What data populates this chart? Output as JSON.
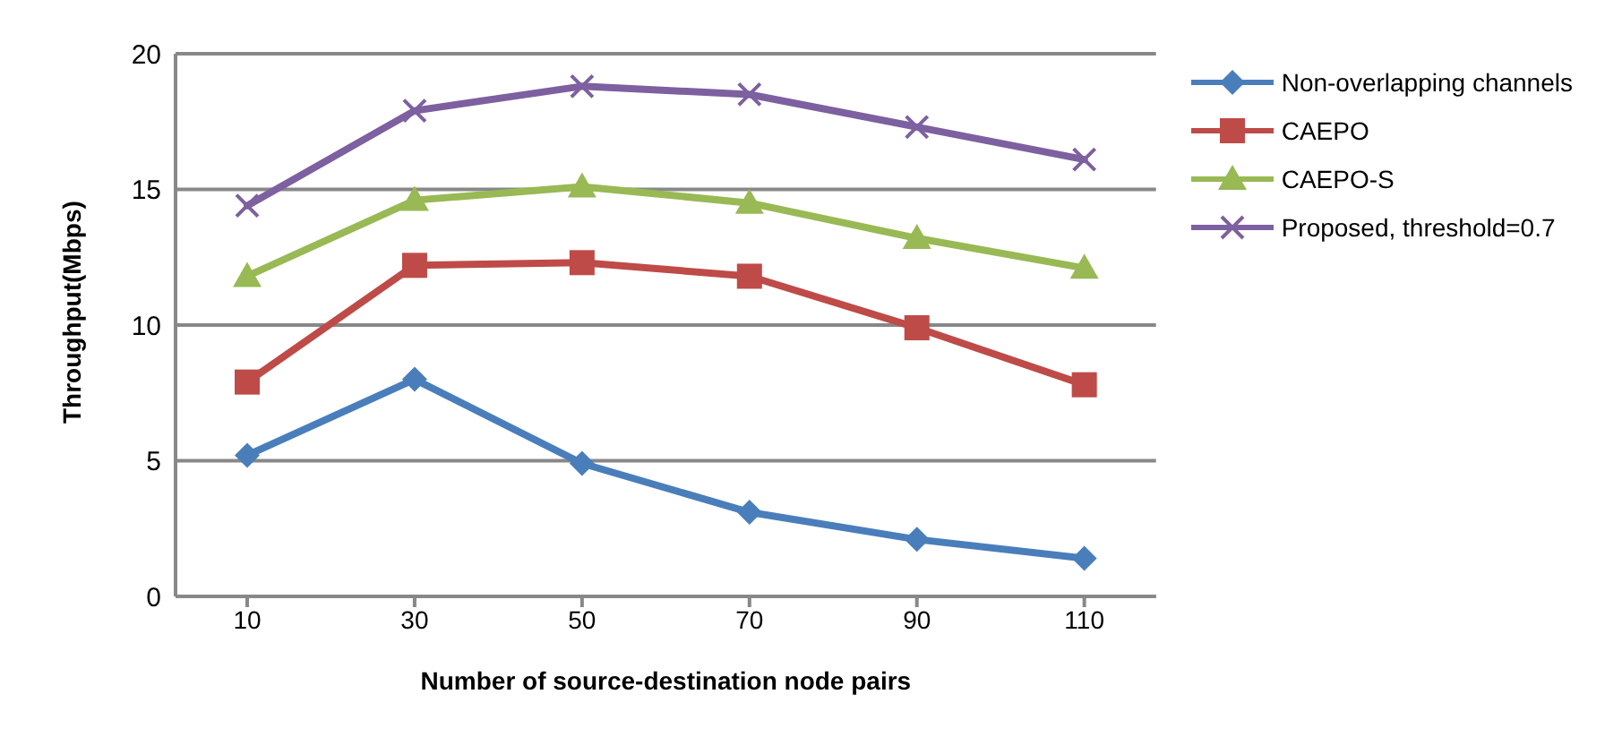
{
  "chart_data": {
    "type": "line",
    "xlabel": "Number of source-destination  node pairs",
    "ylabel": "Throughput(Mbps)",
    "categories": [
      "10",
      "30",
      "50",
      "70",
      "90",
      "110"
    ],
    "series": [
      {
        "name": "Non-overlapping channels",
        "color": "#4a7ebb",
        "marker": "diamond",
        "values": [
          5.2,
          8.0,
          4.9,
          3.1,
          2.1,
          1.4
        ]
      },
      {
        "name": "CAEPO",
        "color": "#be4b48",
        "marker": "square",
        "values": [
          7.9,
          12.2,
          12.3,
          11.8,
          9.9,
          7.8
        ]
      },
      {
        "name": "CAEPO-S",
        "color": "#98b954",
        "marker": "triangle",
        "values": [
          11.8,
          14.6,
          15.1,
          14.5,
          13.2,
          12.1
        ]
      },
      {
        "name": "Proposed, threshold=0.7",
        "color": "#7d60a0",
        "marker": "cross",
        "values": [
          14.4,
          17.9,
          18.8,
          18.5,
          17.3,
          16.1
        ]
      }
    ],
    "ylim": [
      0,
      20
    ],
    "yticks": [
      0,
      5,
      10,
      15,
      20
    ],
    "grid": "y",
    "legend": "right"
  }
}
